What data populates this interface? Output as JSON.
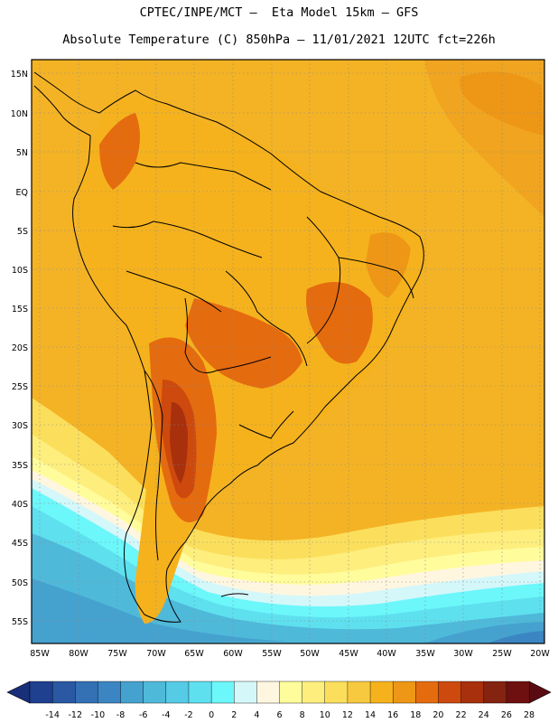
{
  "header": {
    "line1": "CPTEC/INPE/MCT –  Eta Model 15km – GFS",
    "line2": "Absolute Temperature (C) 850hPa – 11/01/2021 12UTC fct=226h"
  },
  "map": {
    "lat_labels": [
      "15N",
      "10N",
      "5N",
      "EQ",
      "5S",
      "10S",
      "15S",
      "20S",
      "25S",
      "30S",
      "35S",
      "40S",
      "45S",
      "50S",
      "55S"
    ],
    "lon_labels": [
      "85W",
      "80W",
      "75W",
      "70W",
      "65W",
      "60W",
      "55W",
      "50W",
      "45W",
      "40W",
      "35W",
      "30W",
      "25W",
      "20W"
    ]
  },
  "colorbar": {
    "labels": [
      "-14",
      "-12",
      "-10",
      "-8",
      "-6",
      "-4",
      "-2",
      "0",
      "2",
      "4",
      "6",
      "8",
      "10",
      "12",
      "14",
      "16",
      "18",
      "20",
      "22",
      "24",
      "26",
      "28"
    ],
    "colors": [
      "#1f3f8f",
      "#2a58a3",
      "#3370b4",
      "#3b86c2",
      "#45a2cf",
      "#4fb9da",
      "#55cbe6",
      "#5ee0ef",
      "#6cf7fa",
      "#d4f7fa",
      "#fff6e0",
      "#fffc9c",
      "#fdee7e",
      "#fbdf5c",
      "#f7c93e",
      "#f5b21d",
      "#ee9716",
      "#e56b0f",
      "#cd490d",
      "#a8300d",
      "#842310",
      "#6e1010"
    ],
    "left_arrow_color": "#1a2f7a",
    "right_arrow_color": "#5a0b12"
  }
}
